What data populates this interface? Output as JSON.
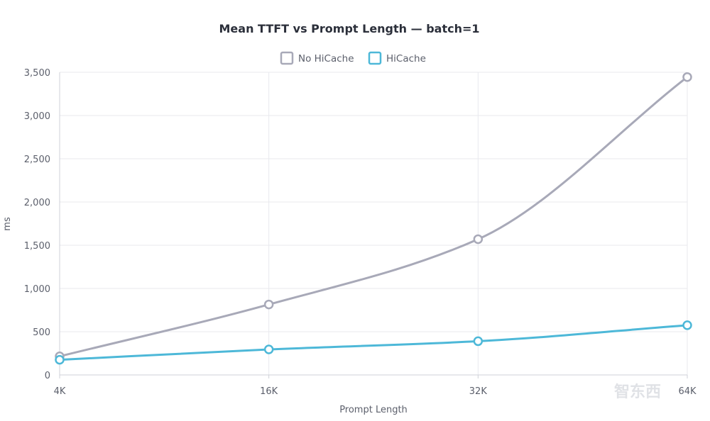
{
  "chart_data": {
    "type": "line",
    "title": "Mean TTFT vs Prompt Length — batch=1",
    "xlabel": "Prompt Length",
    "ylabel": "ms",
    "categories": [
      "4K",
      "16K",
      "32K",
      "64K"
    ],
    "ylim": [
      0,
      3500
    ],
    "yticks": [
      "0",
      "500",
      "1,000",
      "1,500",
      "2,000",
      "2,500",
      "3,000",
      "3,500"
    ],
    "ytick_values": [
      0,
      500,
      1000,
      1500,
      2000,
      2500,
      3000,
      3500
    ],
    "legend_position": "top-center",
    "grid": true,
    "series": [
      {
        "name": "No HiCache",
        "values": [
          215,
          815,
          1570,
          3445
        ],
        "color": "#a8a9b8"
      },
      {
        "name": "HiCache",
        "values": [
          175,
          295,
          390,
          575
        ],
        "color": "#4db8d8"
      }
    ]
  },
  "watermark": "智东西"
}
